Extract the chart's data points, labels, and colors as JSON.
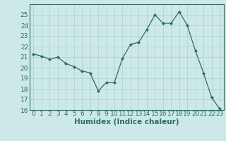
{
  "x": [
    0,
    1,
    2,
    3,
    4,
    5,
    6,
    7,
    8,
    9,
    10,
    11,
    12,
    13,
    14,
    15,
    16,
    17,
    18,
    19,
    20,
    21,
    22,
    23
  ],
  "y": [
    21.3,
    21.1,
    20.8,
    21.0,
    20.4,
    20.1,
    19.7,
    19.5,
    17.8,
    18.6,
    18.6,
    20.9,
    22.2,
    22.4,
    23.6,
    25.0,
    24.2,
    24.2,
    25.3,
    24.0,
    21.6,
    19.5,
    17.2,
    16.1
  ],
  "xlabel": "Humidex (Indice chaleur)",
  "ylim": [
    16,
    26
  ],
  "yticks": [
    16,
    17,
    18,
    19,
    20,
    21,
    22,
    23,
    24,
    25
  ],
  "xticks": [
    0,
    1,
    2,
    3,
    4,
    5,
    6,
    7,
    8,
    9,
    10,
    11,
    12,
    13,
    14,
    15,
    16,
    17,
    18,
    19,
    20,
    21,
    22,
    23
  ],
  "line_color": "#2d6e5e",
  "marker": "D",
  "marker_size": 2.0,
  "bg_color": "#cce8e8",
  "grid_color": "#aad0d0",
  "border_color": "#2d6e5e",
  "tick_fontsize": 6.5,
  "xlabel_fontsize": 7.5
}
